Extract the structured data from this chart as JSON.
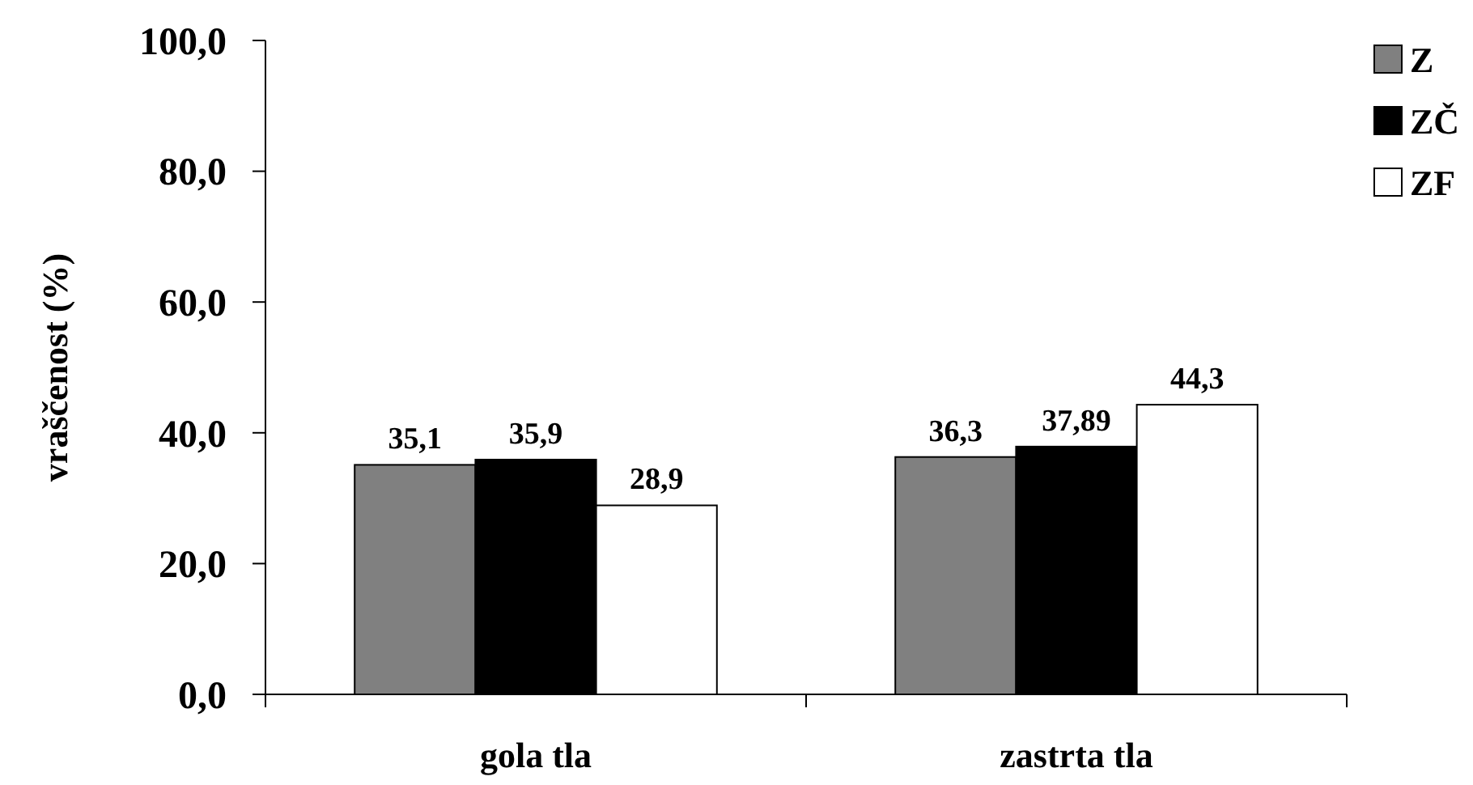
{
  "chart_data": {
    "type": "bar",
    "ylabel": "vraščenost (%)",
    "categories": [
      "gola tla",
      "zastrta tla"
    ],
    "series": [
      {
        "name": "Z",
        "color": "#808080",
        "values": [
          35.1,
          36.3
        ],
        "value_labels": [
          "35,1",
          "36,3"
        ]
      },
      {
        "name": "ZČ",
        "color": "#000000",
        "values": [
          35.9,
          37.89
        ],
        "value_labels": [
          "35,9",
          "37,89"
        ]
      },
      {
        "name": "ZF",
        "color": "#ffffff",
        "values": [
          28.9,
          44.3
        ],
        "value_labels": [
          "28,9",
          "44,3"
        ]
      }
    ],
    "ylim": [
      0,
      100
    ],
    "yticks": [
      {
        "value": 0,
        "label": "0,0"
      },
      {
        "value": 20,
        "label": "20,0"
      },
      {
        "value": 40,
        "label": "40,0"
      },
      {
        "value": 60,
        "label": "60,0"
      },
      {
        "value": 80,
        "label": "80,0"
      },
      {
        "value": 100,
        "label": "100,0"
      }
    ],
    "legend": "top right",
    "grid": false
  }
}
